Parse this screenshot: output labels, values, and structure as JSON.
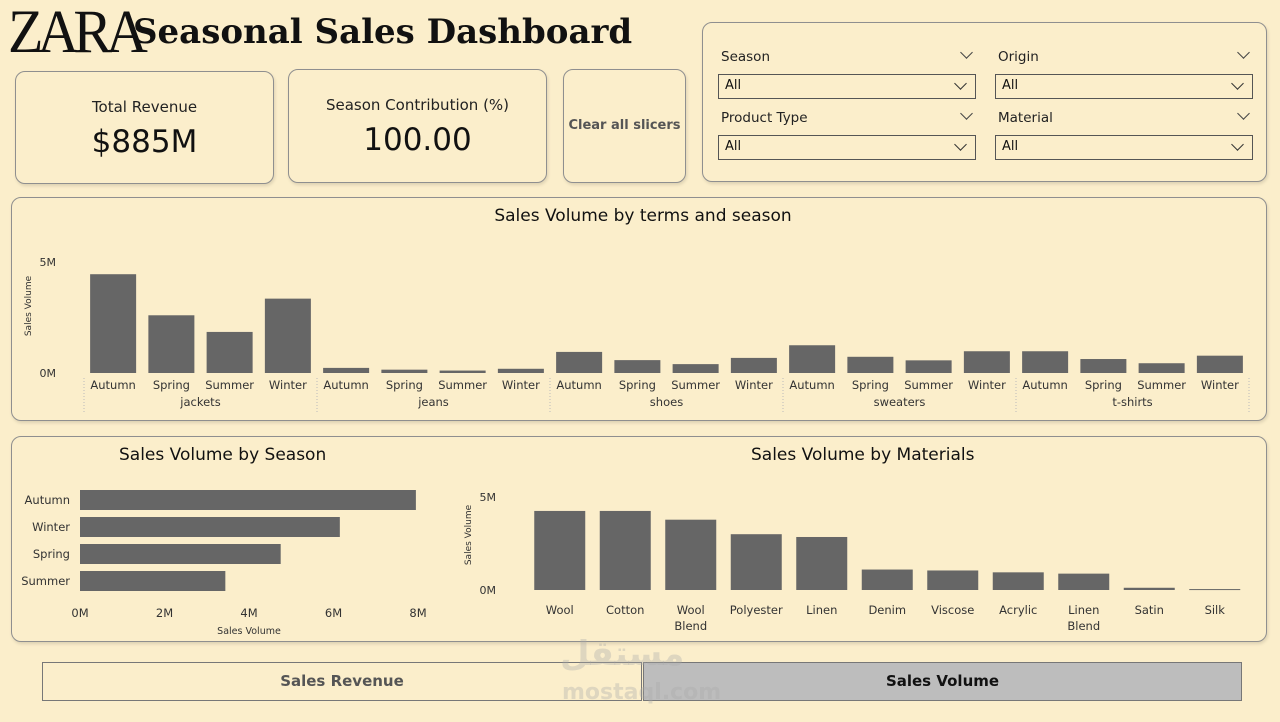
{
  "header": {
    "logo": "ZARA",
    "title": "Seasonal Sales Dashboard"
  },
  "kpis": [
    {
      "label": "Total Revenue",
      "value": "$885M"
    },
    {
      "label": "Season Contribution (%)",
      "value": "100.00"
    }
  ],
  "clear_button": "Clear all slicers",
  "slicers": [
    {
      "label": "Season",
      "value": "All"
    },
    {
      "label": "Origin",
      "value": "All"
    },
    {
      "label": "Product Type",
      "value": "All"
    },
    {
      "label": "Material",
      "value": "All"
    }
  ],
  "tabs": {
    "revenue": "Sales Revenue",
    "volume": "Sales Volume"
  },
  "watermark": {
    "arabic": "مستقل",
    "latin": "mostaql.com"
  },
  "chart_data": [
    {
      "type": "bar",
      "title": "Sales Volume by terms and season",
      "ylabel": "Sales Volume",
      "ylim": [
        0,
        5000000
      ],
      "yticks": [
        "0M",
        "5M"
      ],
      "groups": [
        "jackets",
        "jeans",
        "shoes",
        "sweaters",
        "t-shirts"
      ],
      "seasons": [
        "Autumn",
        "Spring",
        "Summer",
        "Winter"
      ],
      "values": [
        [
          4450000,
          2600000,
          1850000,
          3350000
        ],
        [
          230000,
          150000,
          110000,
          190000
        ],
        [
          950000,
          580000,
          400000,
          680000
        ],
        [
          1250000,
          730000,
          570000,
          980000
        ],
        [
          980000,
          630000,
          440000,
          780000
        ]
      ]
    },
    {
      "type": "bar",
      "orientation": "horizontal",
      "title": "Sales Volume by Season",
      "xlabel": "Sales Volume",
      "xlim": [
        0,
        8000000
      ],
      "xticks": [
        "0M",
        "2M",
        "4M",
        "6M",
        "8M"
      ],
      "categories": [
        "Autumn",
        "Winter",
        "Spring",
        "Summer"
      ],
      "values": [
        7950000,
        6150000,
        4750000,
        3440000
      ]
    },
    {
      "type": "bar",
      "title": "Sales Volume by Materials",
      "ylabel": "Sales Volume",
      "ylim": [
        0,
        5000000
      ],
      "yticks": [
        "0M",
        "5M"
      ],
      "categories": [
        "Wool",
        "Cotton",
        "Wool Blend",
        "Polyester",
        "Linen",
        "Denim",
        "Viscose",
        "Acrylic",
        "Linen Blend",
        "Satin",
        "Silk"
      ],
      "values": [
        4250000,
        4250000,
        3780000,
        3000000,
        2850000,
        1100000,
        1050000,
        950000,
        880000,
        120000,
        50000
      ]
    }
  ]
}
